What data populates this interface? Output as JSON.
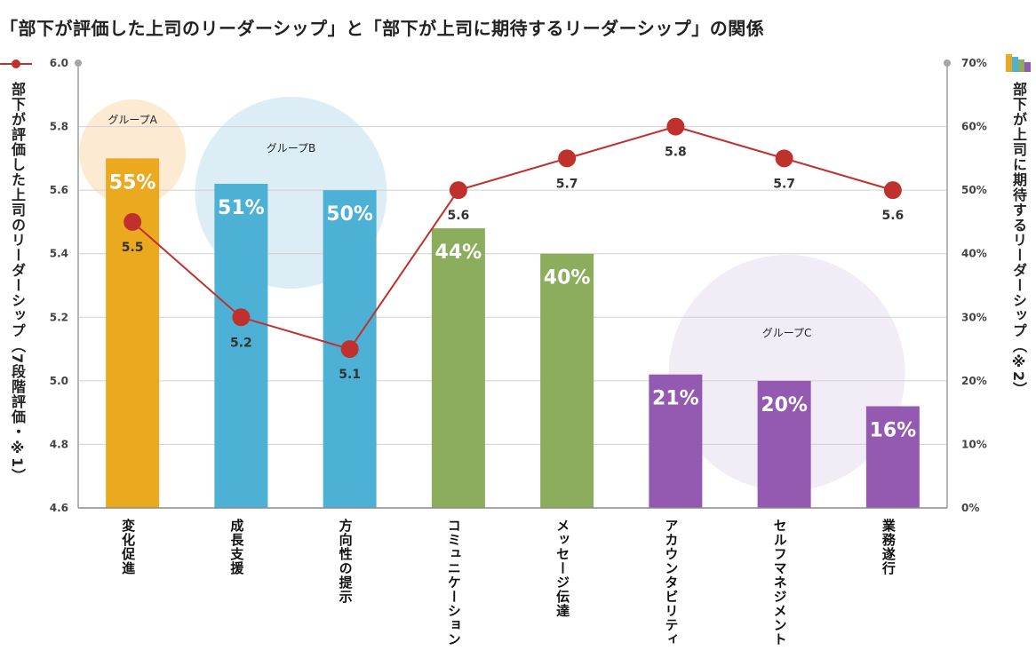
{
  "chart_data": {
    "type": "bar",
    "title": "「部下が評価した上司のリーダーシップ」と「部下が上司に期待するリーダーシップ」の関係",
    "categories": [
      "変化促進",
      "成長支援",
      "方向性の提示",
      "コミュニケーション",
      "メッセージ伝達",
      "アカウンタビリティ",
      "セルフマネジメント",
      "業務遂行"
    ],
    "series": [
      {
        "name": "部下が上司に期待するリーダーシップ（※2）",
        "type": "bar",
        "axis": "right",
        "unit": "%",
        "values": [
          55,
          51,
          50,
          44,
          40,
          21,
          20,
          16
        ],
        "labels": [
          "55%",
          "51%",
          "50%",
          "44%",
          "40%",
          "21%",
          "20%",
          "16%"
        ]
      },
      {
        "name": "部下が評価した上司のリーダーシップ（7段階評価・※1）",
        "type": "line",
        "axis": "left",
        "values": [
          5.5,
          5.2,
          5.1,
          5.6,
          5.7,
          5.8,
          5.7,
          5.6
        ],
        "labels": [
          "5.5",
          "5.2",
          "5.1",
          "5.6",
          "5.7",
          "5.8",
          "5.7",
          "5.6"
        ]
      }
    ],
    "bar_colors": [
      "#eba920",
      "#4db1d6",
      "#4db1d6",
      "#8cae5c",
      "#8cae5c",
      "#9459b1",
      "#9459b1",
      "#9459b1"
    ],
    "line_color": "#c0302c",
    "left_axis": {
      "label": "部下が評価した上司のリーダーシップ（7段階評価・※1）",
      "ylim": [
        4.6,
        6.0
      ],
      "ticks": [
        "6.0",
        "5.8",
        "5.6",
        "5.4",
        "5.2",
        "5.0",
        "4.8",
        "4.6"
      ]
    },
    "right_axis": {
      "label": "部下が上司に期待するリーダーシップ（※2）",
      "ylim": [
        0,
        70
      ],
      "ticks": [
        "70%",
        "60%",
        "50%",
        "40%",
        "30%",
        "20%",
        "10%",
        "0%"
      ]
    },
    "groups": [
      {
        "label": "グループA",
        "members": [
          "変化促進"
        ],
        "color": "#fcebd2"
      },
      {
        "label": "グループB",
        "members": [
          "成長支援",
          "方向性の提示"
        ],
        "color": "#dcedf5"
      },
      {
        "label": "グループC",
        "members": [
          "アカウンタビリティ",
          "セルフマネジメント",
          "業務遂行"
        ],
        "color": "#f1ecf5"
      }
    ],
    "grid": "horizontal"
  }
}
